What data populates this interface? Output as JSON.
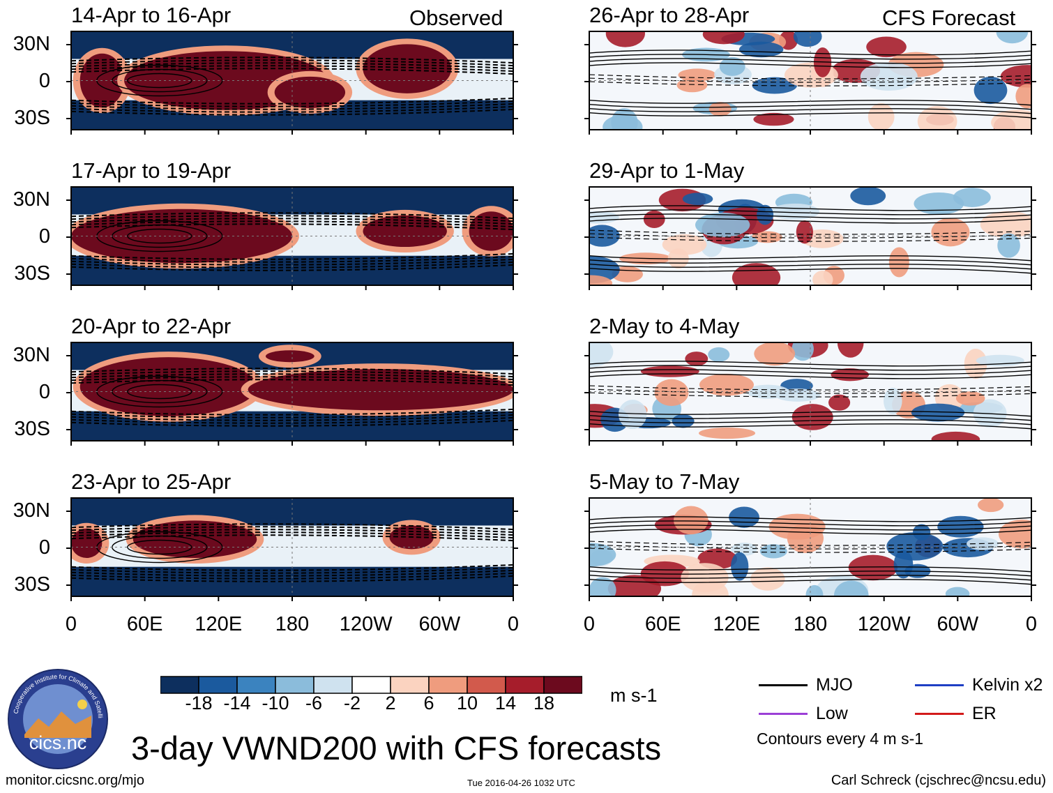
{
  "title": "3-day VWND200 with CFS forecasts",
  "units": "m s-1",
  "header_left": "Observed",
  "header_right": "CFS Forecast",
  "colorbar": {
    "ticks": [
      "-18",
      "-14",
      "-10",
      "-6",
      "-2",
      "2",
      "6",
      "10",
      "14",
      "18"
    ],
    "colors": [
      "#0d2f5e",
      "#1b5a9e",
      "#3b83bf",
      "#8bbcdb",
      "#cfe2ef",
      "#ffffff",
      "#fbd3c0",
      "#ef9c7e",
      "#d25a4c",
      "#a61d2b",
      "#6c0a1e"
    ]
  },
  "legend": {
    "items": [
      {
        "label": "MJO",
        "color": "#000000"
      },
      {
        "label": "Kelvin x2",
        "color": "#1e3fc4"
      },
      {
        "label": "Low",
        "color": "#9b3fd6"
      },
      {
        "label": "ER",
        "color": "#d21a1a"
      }
    ],
    "contour_note": "Contours every 4 m s-1"
  },
  "footer": {
    "url": "monitor.cicsnc.org/mjo",
    "timestamp": "Tue 2016-04-26 1032 UTC",
    "credit": "Carl Schreck (cjschrec@ncsu.edu)"
  },
  "logo": {
    "text": "cics.nc",
    "ring_text": "Cooperative Institute for Climate and Satellites"
  },
  "chart_data": {
    "type": "heatmap",
    "variable": "200-hPa meridional wind (VWND200) 3-day mean anomaly",
    "yticks": [
      "30N",
      "0",
      "30S"
    ],
    "xticks": [
      "0",
      "60E",
      "120E",
      "180",
      "120W",
      "60W",
      "0"
    ],
    "xlim": [
      0,
      360
    ],
    "ylim": [
      -40,
      40
    ],
    "observed": [
      {
        "period": "14-Apr to 16-Apr",
        "regime": "strong-positive belt 0-40E to 160E, secondary near 80W"
      },
      {
        "period": "17-Apr to 19-Apr",
        "regime": "strong-positive belt 0 to 180 and 60W to 0"
      },
      {
        "period": "20-Apr to 22-Apr",
        "regime": "strong-positive belt across most longitudes"
      },
      {
        "period": "23-Apr to 25-Apr",
        "regime": "positive belt 40E to 150E, weakening east"
      }
    ],
    "forecast": [
      {
        "period": "26-Apr to 28-Apr"
      },
      {
        "period": "29-Apr to 1-May"
      },
      {
        "period": "2-May to 4-May"
      },
      {
        "period": "5-May to 7-May"
      }
    ]
  }
}
